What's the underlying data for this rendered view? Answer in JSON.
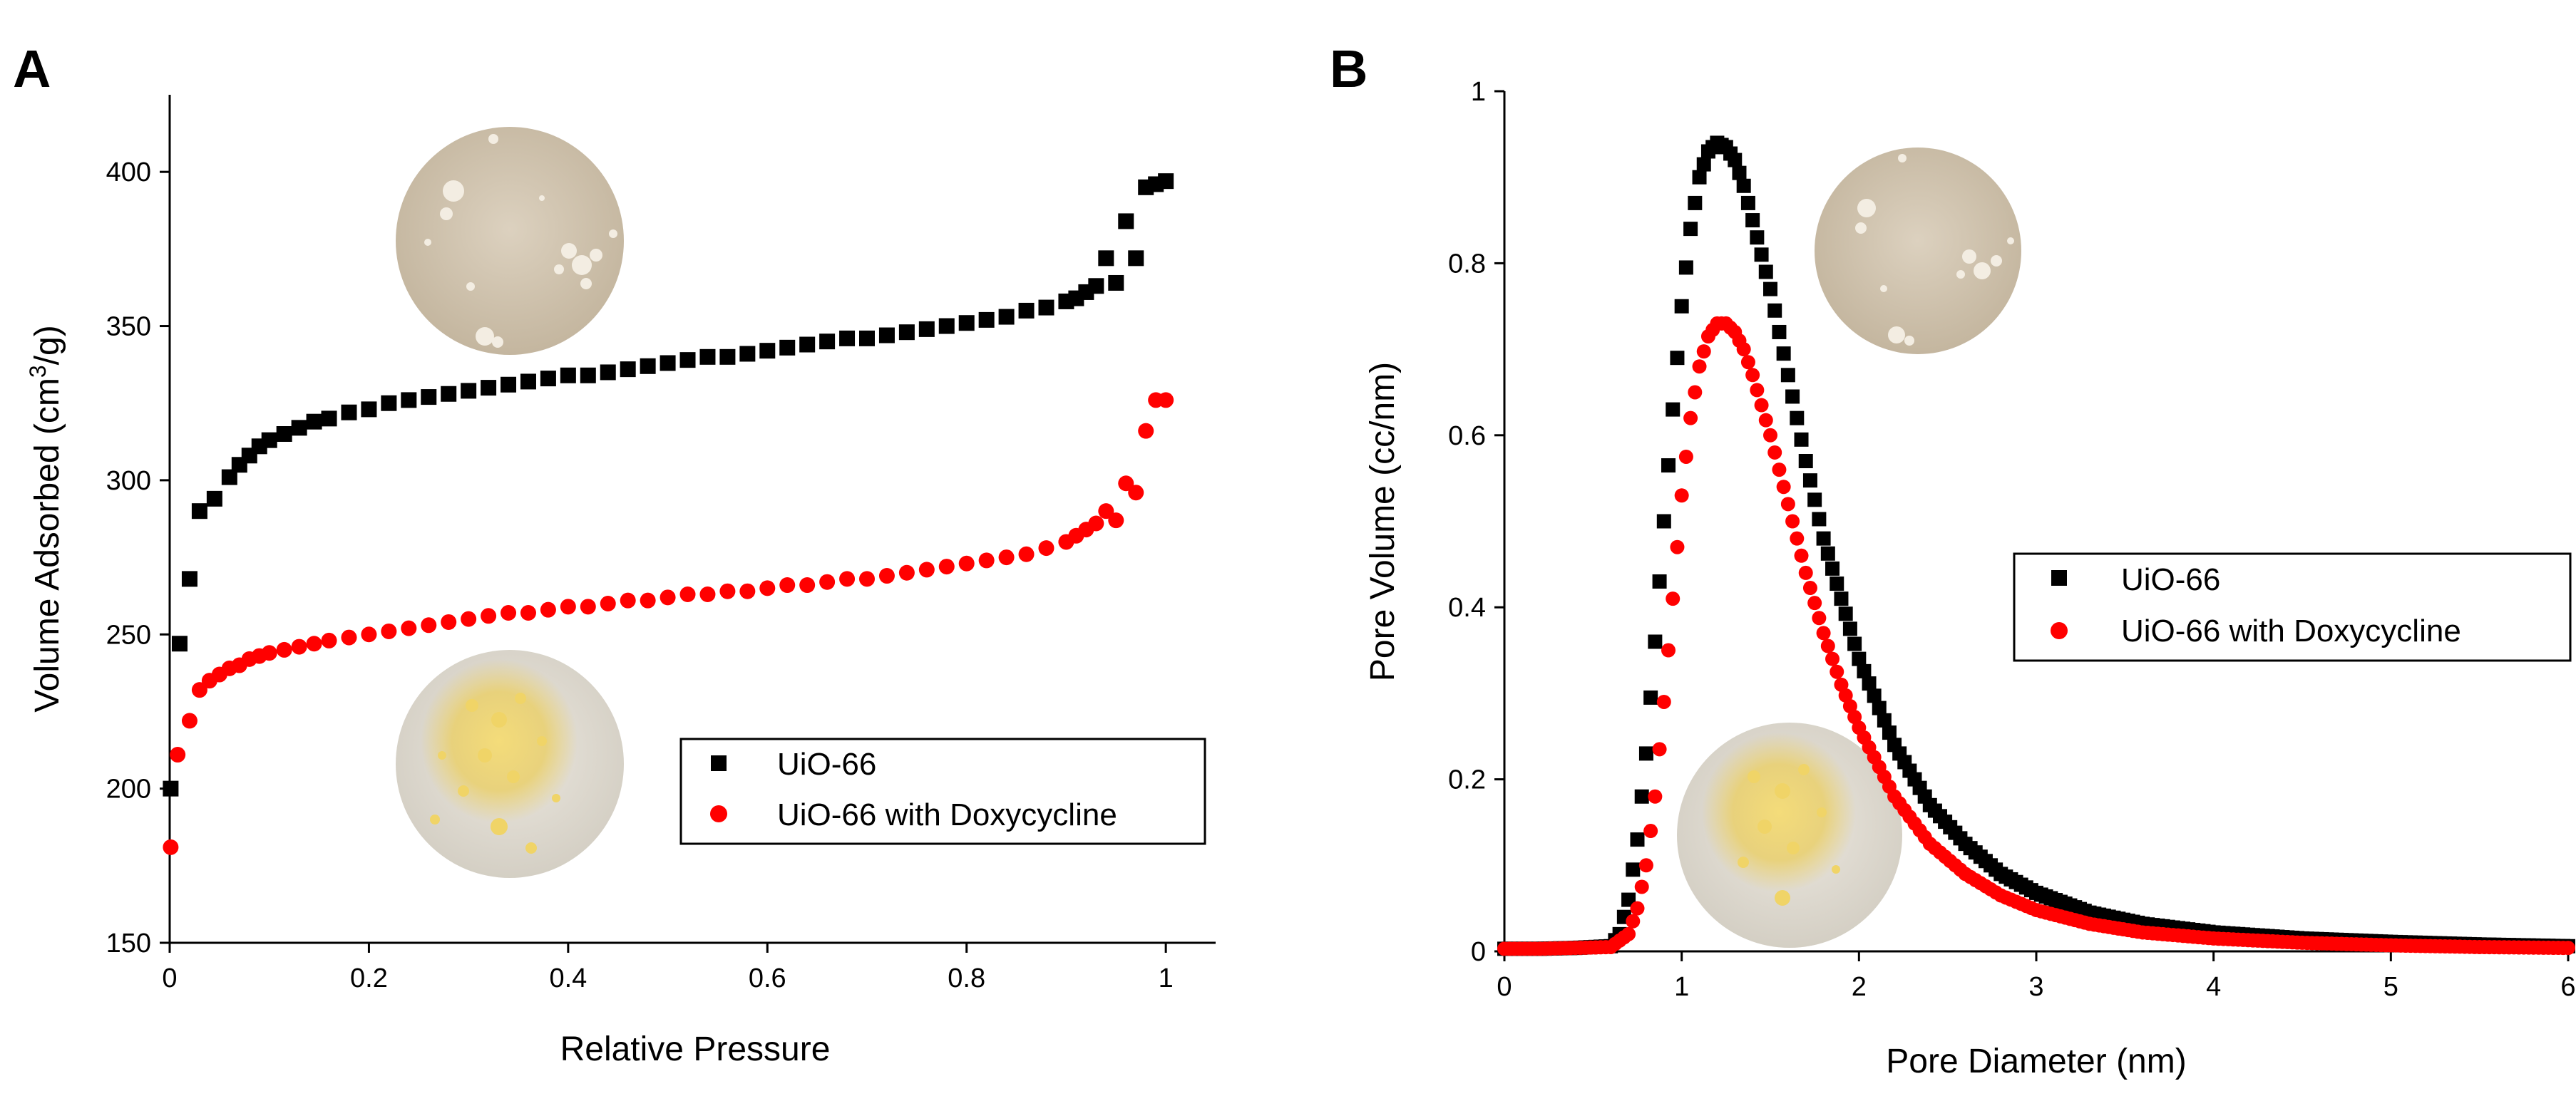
{
  "colors": {
    "series_uio66": "#000000",
    "series_uio66_doxy": "#ff0000",
    "background": "#ffffff"
  },
  "chart_data": [
    {
      "panel_label": "A",
      "type": "scatter",
      "title": "",
      "xlabel": "Relative Pressure",
      "ylabel": "Volume Adsorbed (cm³/g)",
      "ylabel_parts": {
        "pre": "Volume Adsorbed (cm",
        "sup": "3",
        "post": "/g)"
      },
      "xlim": [
        0,
        1.05
      ],
      "ylim": [
        150,
        425
      ],
      "xticks": [
        0,
        0.2,
        0.4,
        0.6,
        0.8,
        1
      ],
      "xtick_labels": [
        "0",
        "0.2",
        "0.4",
        "0.6",
        "0.8",
        "1"
      ],
      "yticks": [
        150,
        200,
        250,
        300,
        350,
        400
      ],
      "ytick_labels": [
        "150",
        "200",
        "250",
        "300",
        "350",
        "400"
      ],
      "legend_position": "bottom-right",
      "series": [
        {
          "name": "UiO-66",
          "marker": "square",
          "color": "#000000",
          "x": [
            0.001,
            0.01,
            0.02,
            0.03,
            0.045,
            0.06,
            0.07,
            0.08,
            0.09,
            0.1,
            0.115,
            0.13,
            0.145,
            0.16,
            0.18,
            0.2,
            0.22,
            0.24,
            0.26,
            0.28,
            0.3,
            0.32,
            0.34,
            0.36,
            0.38,
            0.4,
            0.42,
            0.44,
            0.46,
            0.48,
            0.5,
            0.52,
            0.54,
            0.56,
            0.58,
            0.6,
            0.62,
            0.64,
            0.66,
            0.68,
            0.7,
            0.72,
            0.74,
            0.76,
            0.78,
            0.8,
            0.82,
            0.84,
            0.86,
            0.88,
            0.9,
            0.91,
            0.92,
            0.93,
            0.94,
            0.95,
            0.96,
            0.97,
            0.98,
            0.99,
            1.0
          ],
          "y": [
            200,
            247,
            268,
            290,
            294,
            301,
            305,
            308,
            311,
            313,
            315,
            317,
            319,
            320,
            322,
            323,
            325,
            326,
            327,
            328,
            329,
            330,
            331,
            332,
            333,
            334,
            334,
            335,
            336,
            337,
            338,
            339,
            340,
            340,
            341,
            342,
            343,
            344,
            345,
            346,
            346,
            347,
            348,
            349,
            350,
            351,
            352,
            353,
            355,
            356,
            358,
            359,
            361,
            363,
            372,
            364,
            384,
            372,
            395,
            396,
            397
          ]
        },
        {
          "name": "UiO-66 with Doxycycline",
          "marker": "circle",
          "color": "#ff0000",
          "x": [
            0.001,
            0.008,
            0.02,
            0.03,
            0.04,
            0.05,
            0.06,
            0.07,
            0.08,
            0.09,
            0.1,
            0.115,
            0.13,
            0.145,
            0.16,
            0.18,
            0.2,
            0.22,
            0.24,
            0.26,
            0.28,
            0.3,
            0.32,
            0.34,
            0.36,
            0.38,
            0.4,
            0.42,
            0.44,
            0.46,
            0.48,
            0.5,
            0.52,
            0.54,
            0.56,
            0.58,
            0.6,
            0.62,
            0.64,
            0.66,
            0.68,
            0.7,
            0.72,
            0.74,
            0.76,
            0.78,
            0.8,
            0.82,
            0.84,
            0.86,
            0.88,
            0.9,
            0.91,
            0.92,
            0.93,
            0.94,
            0.95,
            0.96,
            0.97,
            0.98,
            0.99,
            1.0
          ],
          "y": [
            181,
            211,
            222,
            232,
            235,
            237,
            239,
            240,
            242,
            243,
            244,
            245,
            246,
            247,
            248,
            249,
            250,
            251,
            252,
            253,
            254,
            255,
            256,
            257,
            257,
            258,
            259,
            259,
            260,
            261,
            261,
            262,
            263,
            263,
            264,
            264,
            265,
            266,
            266,
            267,
            268,
            268,
            269,
            270,
            271,
            272,
            273,
            274,
            275,
            276,
            278,
            280,
            282,
            284,
            286,
            290,
            287,
            299,
            296,
            316,
            326,
            326
          ]
        }
      ],
      "inset_images": [
        {
          "name": "uio66-photo",
          "position": "upper-left",
          "depicts": "white-powder"
        },
        {
          "name": "uio66-doxy-photo",
          "position": "lower-left",
          "depicts": "yellow-powder"
        }
      ]
    },
    {
      "panel_label": "B",
      "type": "scatter",
      "title": "",
      "xlabel": "Pore Diameter (nm)",
      "ylabel": "Pore Volume (cc/nm)",
      "xlim": [
        0,
        6
      ],
      "ylim": [
        0,
        1
      ],
      "xticks": [
        0,
        1,
        2,
        3,
        4,
        5,
        6
      ],
      "xtick_labels": [
        "0",
        "1",
        "2",
        "3",
        "4",
        "5",
        "6"
      ],
      "yticks": [
        0,
        0.2,
        0.4,
        0.6,
        0.8,
        1
      ],
      "ytick_labels": [
        "0",
        "0.2",
        "0.4",
        "0.6",
        "0.8",
        "1"
      ],
      "legend_position": "middle-right",
      "series": [
        {
          "name": "UiO-66",
          "marker": "square",
          "color": "#000000",
          "x": [
            0,
            0.2,
            0.4,
            0.6,
            0.65,
            0.7,
            0.75,
            0.8,
            0.85,
            0.9,
            0.95,
            1.0,
            1.05,
            1.1,
            1.15,
            1.2,
            1.25,
            1.3,
            1.35,
            1.4,
            1.5,
            1.6,
            1.7,
            1.8,
            1.9,
            2.0,
            2.2,
            2.4,
            2.6,
            2.8,
            3.0,
            3.3,
            3.6,
            4.0,
            4.5,
            5.0,
            5.5,
            6.0
          ],
          "y": [
            0.003,
            0.003,
            0.004,
            0.006,
            0.02,
            0.06,
            0.13,
            0.23,
            0.36,
            0.5,
            0.63,
            0.75,
            0.84,
            0.9,
            0.93,
            0.94,
            0.935,
            0.92,
            0.89,
            0.85,
            0.77,
            0.67,
            0.57,
            0.48,
            0.41,
            0.34,
            0.24,
            0.17,
            0.125,
            0.09,
            0.068,
            0.045,
            0.032,
            0.022,
            0.015,
            0.011,
            0.008,
            0.006
          ]
        },
        {
          "name": "UiO-66 with Doxycycline",
          "marker": "circle",
          "color": "#ff0000",
          "x": [
            0,
            0.2,
            0.4,
            0.6,
            0.7,
            0.75,
            0.8,
            0.85,
            0.9,
            0.95,
            1.0,
            1.05,
            1.1,
            1.15,
            1.2,
            1.25,
            1.3,
            1.35,
            1.4,
            1.5,
            1.6,
            1.7,
            1.8,
            1.9,
            2.0,
            2.2,
            2.4,
            2.6,
            2.8,
            3.0,
            3.3,
            3.6,
            4.0,
            4.5,
            5.0,
            5.5,
            6.0
          ],
          "y": [
            0.003,
            0.003,
            0.004,
            0.005,
            0.02,
            0.05,
            0.1,
            0.18,
            0.29,
            0.41,
            0.53,
            0.62,
            0.68,
            0.715,
            0.73,
            0.73,
            0.72,
            0.7,
            0.67,
            0.6,
            0.52,
            0.44,
            0.37,
            0.31,
            0.26,
            0.18,
            0.125,
            0.09,
            0.065,
            0.048,
            0.032,
            0.022,
            0.015,
            0.01,
            0.007,
            0.005,
            0.004
          ]
        }
      ],
      "inset_images": [
        {
          "name": "uio66-photo",
          "position": "upper-right",
          "depicts": "white-powder"
        },
        {
          "name": "uio66-doxy-photo",
          "position": "lower-left",
          "depicts": "yellow-powder"
        }
      ]
    }
  ]
}
